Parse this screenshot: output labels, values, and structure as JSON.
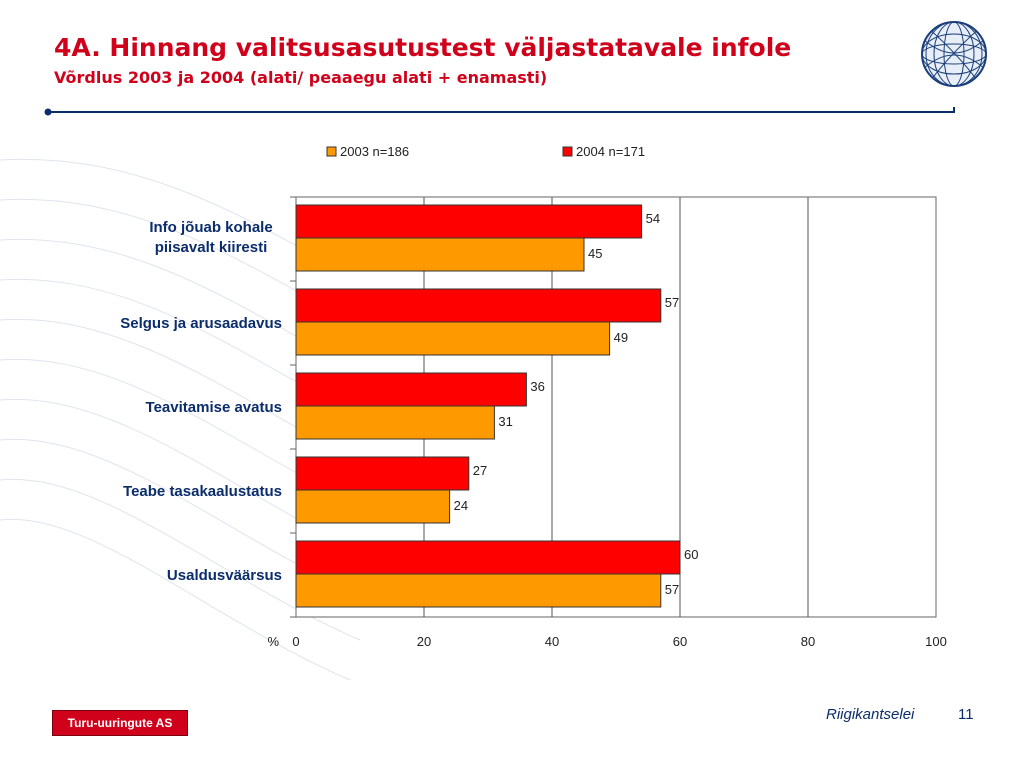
{
  "slide": {
    "title": "4A. Hinnang valitsusasutustest väljastatavale infole",
    "subtitle": "Võrdlus 2003 ja 2004 (alati/ peaaegu alati + enamasti)",
    "logo_text": "Turu-uuringute AS",
    "footer_org": "Riigikantselei",
    "page_number": "11"
  },
  "colors": {
    "title": "#d0021b",
    "category_text": "#0b2d6b",
    "series_2003": "#ff9900",
    "series_2004": "#ff0000",
    "rule": "#0b2d6b"
  },
  "chart_data": {
    "type": "bar",
    "orientation": "horizontal",
    "categories": [
      "Info jõuab kohale piisavalt kiiresti",
      "Selgus ja arusaadavus",
      "Teavitamise avatus",
      "Teabe tasakaalustatus",
      "Usaldusväärsus"
    ],
    "series": [
      {
        "name": "2003 n=186",
        "values": [
          45,
          49,
          31,
          24,
          57
        ]
      },
      {
        "name": "2004 n=171",
        "values": [
          54,
          57,
          36,
          27,
          60
        ]
      }
    ],
    "xlim": [
      0,
      100
    ],
    "xticks": [
      "0",
      "20",
      "40",
      "60",
      "80",
      "100"
    ],
    "xlabel": "%",
    "legend": "top",
    "grid": true
  }
}
